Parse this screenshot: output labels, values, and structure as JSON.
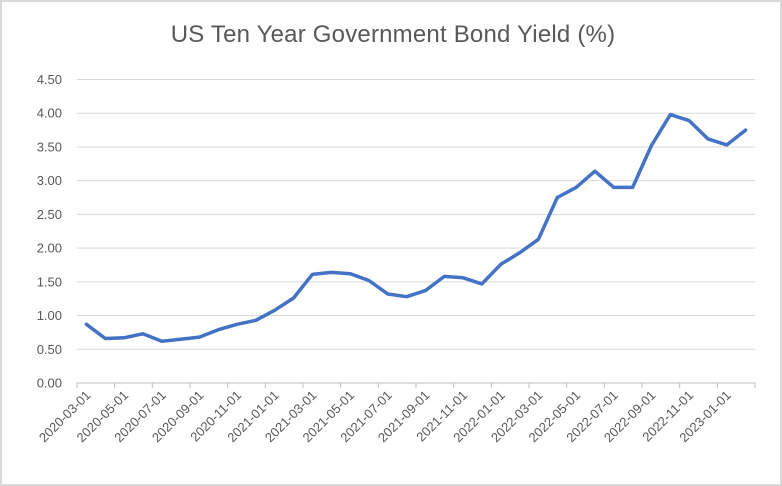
{
  "window": {
    "background": "#ffffff",
    "border_color": "#d9d9d9"
  },
  "chart_data": {
    "type": "line",
    "title": "US Ten Year Government Bond Yield (%)",
    "xlabel": "",
    "ylabel": "",
    "legend": "none",
    "grid": "horizontal",
    "ylim": [
      0,
      4.5
    ],
    "y_tick_labels": [
      "0.00",
      "0.50",
      "1.00",
      "1.50",
      "2.00",
      "2.50",
      "3.00",
      "3.50",
      "4.00",
      "4.50"
    ],
    "x_tick_labels": [
      "2020-03-01",
      "2020-05-01",
      "2020-07-01",
      "2020-09-01",
      "2020-11-01",
      "2021-01-01",
      "2021-03-01",
      "2021-05-01",
      "2021-07-01",
      "2021-09-01",
      "2021-11-01",
      "2022-01-01",
      "2022-03-01",
      "2022-05-01",
      "2022-07-01",
      "2022-09-01",
      "2022-11-01",
      "2023-01-01"
    ],
    "x": [
      "2020-03-01",
      "2020-04-01",
      "2020-05-01",
      "2020-06-01",
      "2020-07-01",
      "2020-08-01",
      "2020-09-01",
      "2020-10-01",
      "2020-11-01",
      "2020-12-01",
      "2021-01-01",
      "2021-02-01",
      "2021-03-01",
      "2021-04-01",
      "2021-05-01",
      "2021-06-01",
      "2021-07-01",
      "2021-08-01",
      "2021-09-01",
      "2021-10-01",
      "2021-11-01",
      "2021-12-01",
      "2022-01-01",
      "2022-02-01",
      "2022-03-01",
      "2022-04-01",
      "2022-05-01",
      "2022-06-01",
      "2022-07-01",
      "2022-08-01",
      "2022-09-01",
      "2022-10-01",
      "2022-11-01",
      "2022-12-01",
      "2023-01-01",
      "2023-02-01"
    ],
    "values": [
      0.87,
      0.66,
      0.67,
      0.73,
      0.62,
      0.65,
      0.68,
      0.79,
      0.87,
      0.93,
      1.08,
      1.26,
      1.61,
      1.64,
      1.62,
      1.52,
      1.32,
      1.28,
      1.37,
      1.58,
      1.56,
      1.47,
      1.76,
      1.93,
      2.13,
      2.75,
      2.9,
      3.14,
      2.9,
      2.9,
      3.52,
      3.98,
      3.89,
      3.62,
      3.53,
      3.75
    ],
    "series_color": "#4472C4",
    "line_width": 3.5,
    "gridline_color": "#d9d9d9",
    "axis_color": "#bfbfbf",
    "tick_text_color": "#595959",
    "title_color": "#595959"
  }
}
